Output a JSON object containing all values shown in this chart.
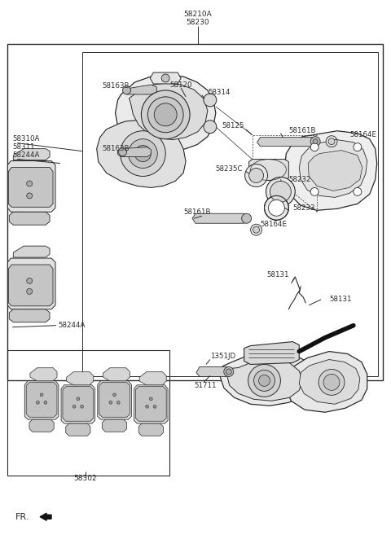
{
  "bg_color": "#ffffff",
  "lc": "#2a2a2a",
  "fig_width": 4.8,
  "fig_height": 6.57,
  "dpi": 100,
  "labels": {
    "top1": "58210A",
    "top2": "58230",
    "l58310A": "58310A",
    "l58311": "58311",
    "l58244A_a": "58244A",
    "l58244A_b": "58244A",
    "l58163B_a": "58163B",
    "l58163B_b": "58163B",
    "l58314": "58314",
    "l58120": "58120",
    "l58125": "58125",
    "l58161B_a": "58161B",
    "l58164E_a": "58164E",
    "l58235C": "58235C",
    "l58232": "58232",
    "l58161B_b": "58161B",
    "l58164E_b": "58164E",
    "l58233": "58233",
    "l58131_a": "58131",
    "l58131_b": "58131",
    "l58302": "58302",
    "l1351JD": "1351JD",
    "l51711": "51711",
    "fr": "FR."
  }
}
